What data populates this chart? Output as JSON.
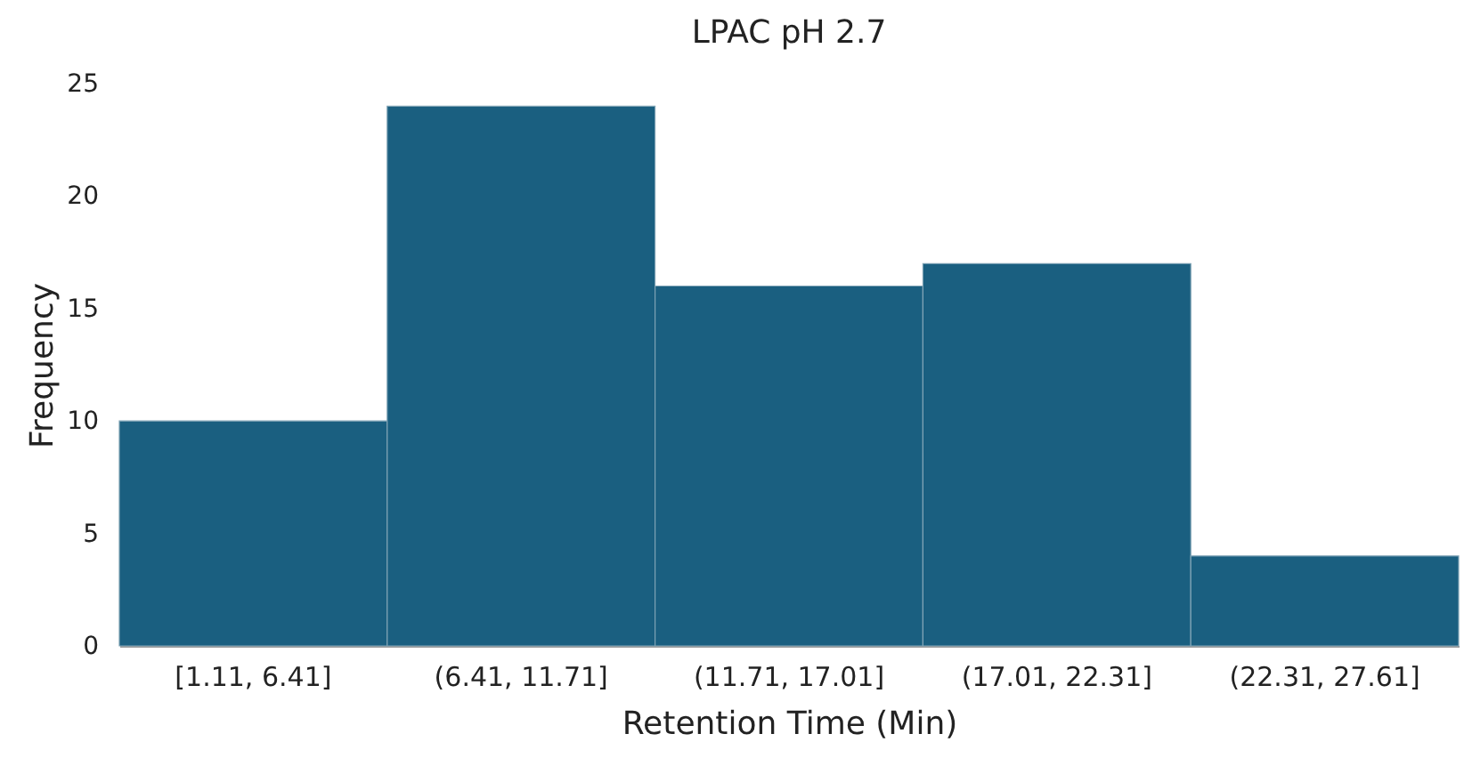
{
  "chart_data": {
    "type": "bar",
    "title": "LPAC pH 2.7",
    "xlabel": "Retention Time (Min)",
    "ylabel": "Frequency",
    "categories": [
      "[1.11, 6.41]",
      "(6.41, 11.71]",
      "(11.71, 17.01]",
      "(17.01, 22.31]",
      "(22.31, 27.61]"
    ],
    "values": [
      10,
      24,
      16,
      17,
      4
    ],
    "color": "#1a5f80",
    "ylim": [
      0,
      25
    ],
    "yticks": [
      0,
      5,
      10,
      15,
      20,
      25
    ],
    "grid": false
  }
}
